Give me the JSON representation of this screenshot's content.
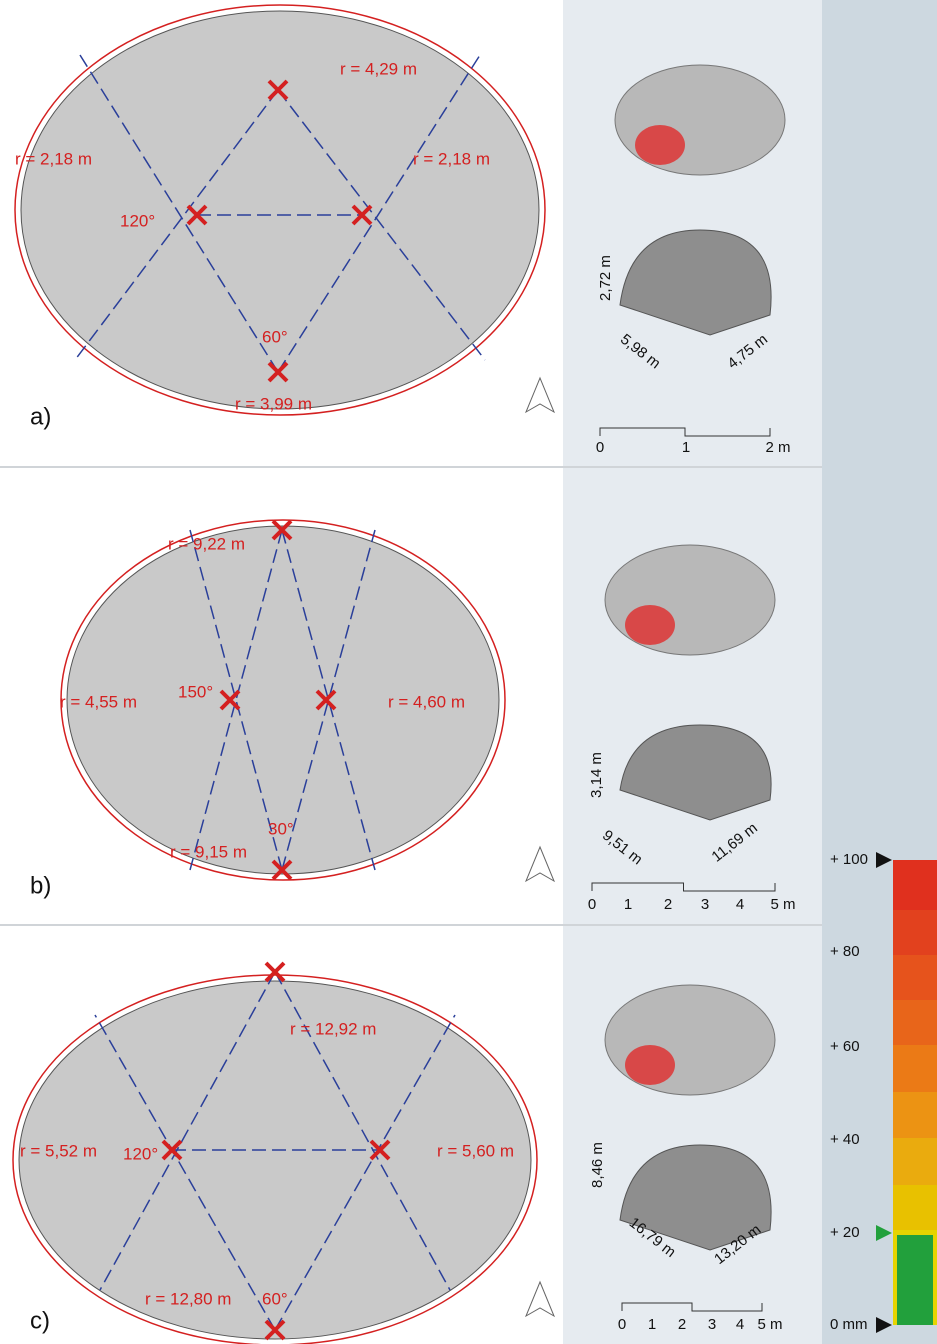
{
  "panels": [
    {
      "label": "a)",
      "radii": [
        "r = 4,29 m",
        "r = 2,18 m",
        "r = 2,18 m",
        "r = 3,99 m"
      ],
      "angles": [
        "120°",
        "60°"
      ],
      "dimensions": [
        "2,72 m",
        "5,98 m",
        "4,75 m"
      ],
      "scale": [
        "0",
        "1",
        "2 m"
      ]
    },
    {
      "label": "b)",
      "radii": [
        "r = 9,22 m",
        "r = 4,55 m",
        "r = 4,60 m",
        "r = 9,15 m"
      ],
      "angles": [
        "150°",
        "30°"
      ],
      "dimensions": [
        "3,14 m",
        "9,51 m",
        "11,69 m"
      ],
      "scale": [
        "0",
        "1",
        "2",
        "3",
        "4",
        "5 m"
      ]
    },
    {
      "label": "c)",
      "radii": [
        "r = 12,92 m",
        "r = 5,52 m",
        "r = 5,60 m",
        "r = 12,80 m"
      ],
      "angles": [
        "120°",
        "60°"
      ],
      "dimensions": [
        "8,46 m",
        "16,79 m",
        "13,20 m"
      ],
      "scale": [
        "0",
        "1",
        "2",
        "3",
        "4",
        "5 m"
      ]
    }
  ],
  "legend": {
    "ticks": [
      "+ 100",
      "+ 80",
      "+ 60",
      "+ 40",
      "+ 20",
      "0 mm"
    ]
  }
}
